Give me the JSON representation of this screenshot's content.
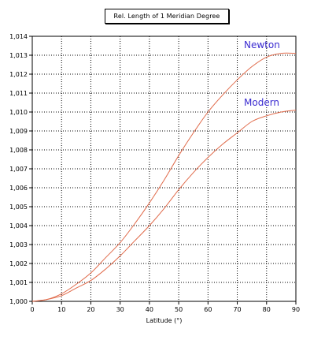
{
  "chart_data": {
    "type": "line",
    "title": "Rel. Length of 1 Meridian Degree",
    "xlabel": "Latitude (°)",
    "ylabel": "",
    "xlim": [
      0,
      90
    ],
    "ylim": [
      1.0,
      1.014
    ],
    "x_ticks": [
      0,
      10,
      20,
      30,
      40,
      50,
      60,
      70,
      80,
      90
    ],
    "y_ticks": [
      1.0,
      1.001,
      1.002,
      1.003,
      1.004,
      1.005,
      1.006,
      1.007,
      1.008,
      1.009,
      1.01,
      1.011,
      1.012,
      1.013,
      1.014
    ],
    "x_tick_labels": [
      "0",
      "10",
      "20",
      "30",
      "40",
      "50",
      "60",
      "70",
      "80",
      "90"
    ],
    "y_tick_labels": [
      "1,000",
      "1,001",
      "1,002",
      "1,003",
      "1,004",
      "1,005",
      "1,006",
      "1,007",
      "1,008",
      "1,009",
      "1,010",
      "1,011",
      "1,012",
      "1,013",
      "1,014"
    ],
    "grid": true,
    "series": [
      {
        "name": "Newton",
        "label_color": "#3a2bd0",
        "line_color": "#e06a4a",
        "x": [
          0,
          5,
          10,
          15,
          20,
          25,
          30,
          35,
          40,
          45,
          50,
          55,
          60,
          65,
          70,
          75,
          80,
          85,
          90
        ],
        "y": [
          1.0,
          1.0001,
          1.0004,
          1.0009,
          1.0015,
          1.0023,
          1.0031,
          1.0041,
          1.0052,
          1.0064,
          1.0077,
          1.0089,
          1.01,
          1.0109,
          1.0117,
          1.0124,
          1.0129,
          1.0131,
          1.0131
        ]
      },
      {
        "name": "Modern",
        "label_color": "#3a2bd0",
        "line_color": "#e06a4a",
        "x": [
          0,
          5,
          10,
          15,
          20,
          25,
          30,
          35,
          40,
          45,
          50,
          55,
          60,
          65,
          70,
          75,
          80,
          85,
          90
        ],
        "y": [
          1.0,
          1.0001,
          1.0003,
          1.0007,
          1.0011,
          1.0017,
          1.0024,
          1.0032,
          1.004,
          1.0049,
          1.0059,
          1.0068,
          1.0076,
          1.0083,
          1.0089,
          1.0095,
          1.0098,
          1.01,
          1.0101
        ]
      }
    ]
  }
}
